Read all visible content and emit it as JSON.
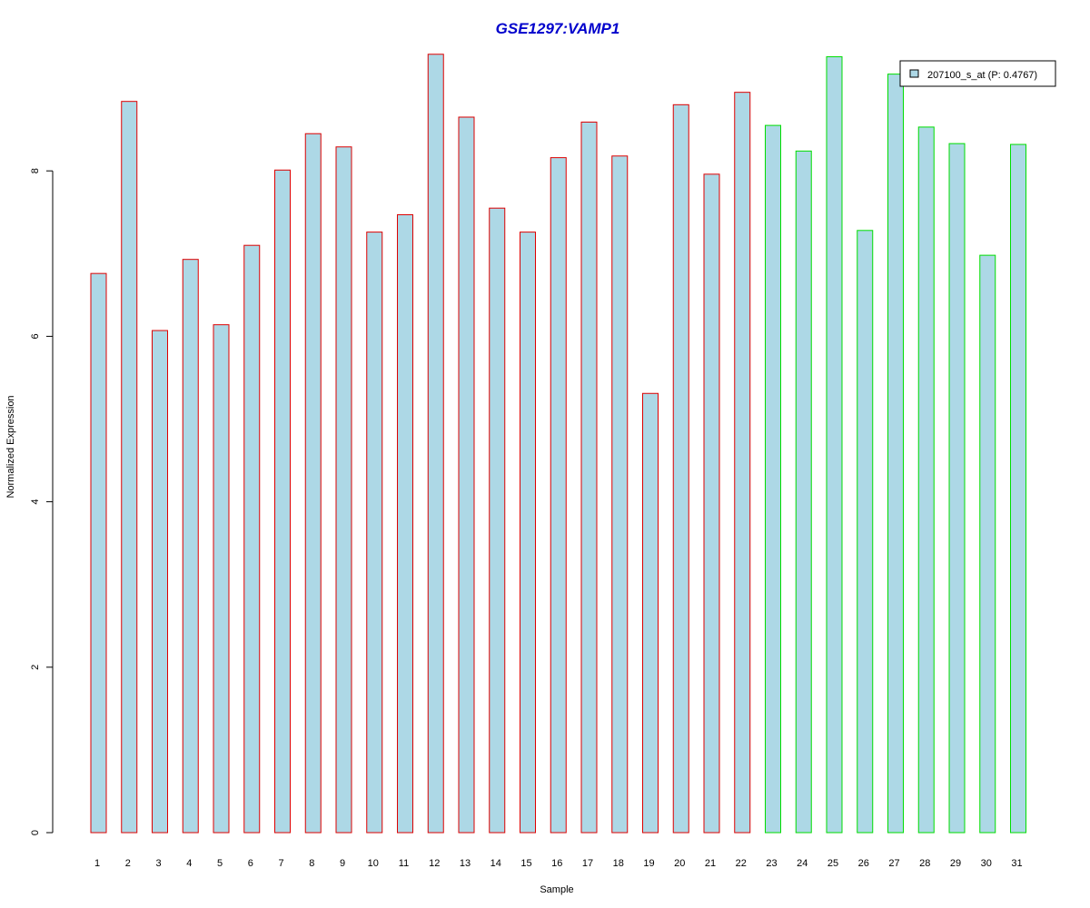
{
  "chart_data": {
    "type": "bar",
    "title": "GSE1297:VAMP1",
    "xlabel": "Sample",
    "ylabel": "Normalized Expression",
    "ylim": [
      0,
      9.4
    ],
    "yticks": [
      0,
      2,
      4,
      6,
      8
    ],
    "grid": false,
    "legend_position": "top-right",
    "categories": [
      "1",
      "2",
      "3",
      "4",
      "5",
      "6",
      "7",
      "8",
      "9",
      "10",
      "11",
      "12",
      "13",
      "14",
      "15",
      "16",
      "17",
      "18",
      "19",
      "20",
      "21",
      "22",
      "23",
      "24",
      "25",
      "26",
      "27",
      "28",
      "29",
      "30",
      "31"
    ],
    "series": [
      {
        "name": "207100_s_at (P: 0.4767)",
        "values": [
          6.76,
          8.84,
          6.07,
          6.93,
          6.14,
          7.1,
          8.01,
          8.45,
          8.29,
          7.26,
          7.47,
          9.41,
          8.65,
          7.55,
          7.26,
          8.16,
          8.59,
          8.18,
          5.31,
          8.8,
          7.96,
          8.95,
          8.55,
          8.24,
          9.38,
          7.28,
          9.17,
          8.53,
          8.33,
          6.98,
          8.32
        ]
      }
    ],
    "groups": [
      "red",
      "red",
      "red",
      "red",
      "red",
      "red",
      "red",
      "red",
      "red",
      "red",
      "red",
      "red",
      "red",
      "red",
      "red",
      "red",
      "red",
      "red",
      "red",
      "red",
      "red",
      "red",
      "green",
      "green",
      "green",
      "green",
      "green",
      "green",
      "green",
      "green",
      "green"
    ]
  },
  "colors": {
    "title": "#0000cc",
    "bar_fill": "#add8e6",
    "group_red": "#dd0000",
    "group_green": "#00dd00",
    "axis": "#000000"
  }
}
